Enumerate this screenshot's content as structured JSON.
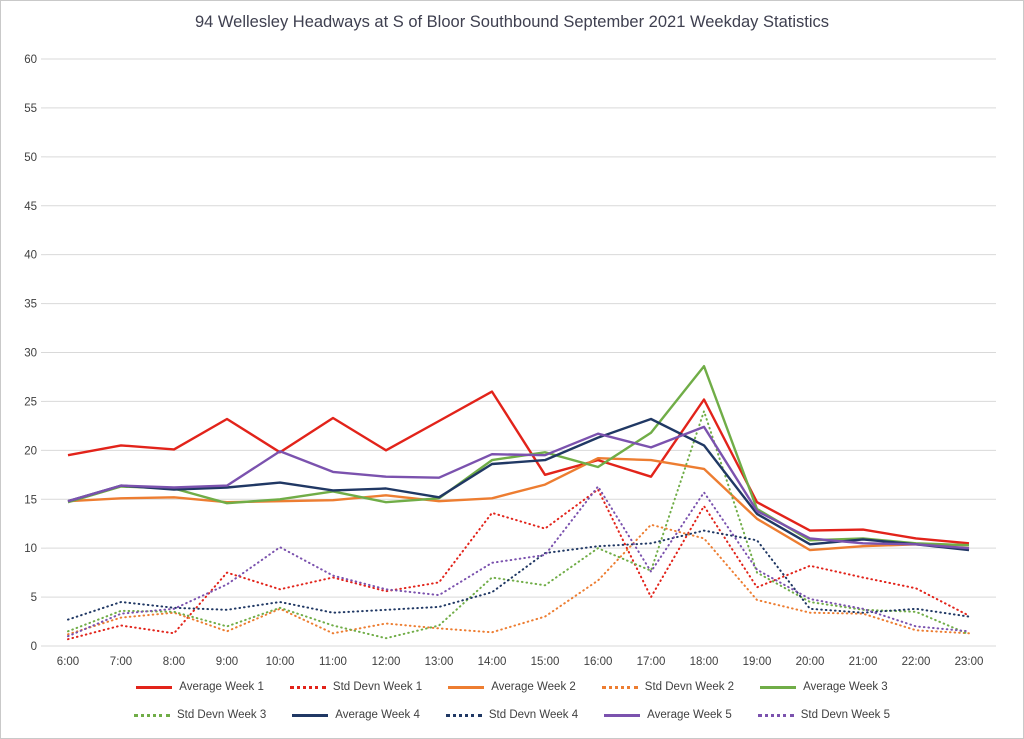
{
  "chart_data": {
    "type": "line",
    "title": "94 Wellesley Headways at S of Bloor Southbound September 2021 Weekday Statistics",
    "xlabel": "",
    "ylabel": "",
    "ylim": [
      0,
      60
    ],
    "ytick": 5,
    "grid": "on",
    "legend_position": "bottom",
    "grid_color": "#d9d9d9",
    "axis_label_color": "#404040",
    "categories": [
      "6:00",
      "7:00",
      "8:00",
      "9:00",
      "10:00",
      "11:00",
      "12:00",
      "13:00",
      "14:00",
      "15:00",
      "16:00",
      "17:00",
      "18:00",
      "19:00",
      "20:00",
      "21:00",
      "22:00",
      "23:00"
    ],
    "series": [
      {
        "name": "Average Week 1",
        "color": "#e2231a",
        "dash": "solid",
        "values": [
          19.5,
          20.5,
          20.1,
          23.2,
          19.8,
          23.3,
          20.0,
          23.0,
          26.0,
          17.5,
          19.0,
          17.3,
          25.2,
          14.7,
          11.8,
          11.9,
          11.0,
          10.5
        ]
      },
      {
        "name": "Std Devn Week 1",
        "color": "#e2231a",
        "dash": "dotted",
        "values": [
          0.7,
          2.1,
          1.3,
          7.5,
          5.8,
          7.0,
          5.6,
          6.5,
          13.6,
          12.0,
          16.0,
          5.0,
          14.3,
          6.0,
          8.2,
          7.0,
          5.9,
          3.1
        ]
      },
      {
        "name": "Average Week 2",
        "color": "#ed7d31",
        "dash": "solid",
        "values": [
          14.8,
          15.1,
          15.2,
          14.7,
          14.8,
          14.9,
          15.4,
          14.8,
          15.1,
          16.5,
          19.2,
          19.0,
          18.1,
          13.0,
          9.8,
          10.2,
          10.4,
          10.3
        ]
      },
      {
        "name": "Std Devn Week 2",
        "color": "#ed7d31",
        "dash": "dotted",
        "values": [
          1.2,
          2.9,
          3.4,
          1.5,
          3.8,
          1.3,
          2.3,
          1.8,
          1.4,
          3.0,
          6.7,
          12.4,
          11.0,
          4.7,
          3.4,
          3.3,
          1.6,
          1.3
        ]
      },
      {
        "name": "Average Week 3",
        "color": "#70ad47",
        "dash": "solid",
        "values": [
          14.7,
          16.3,
          16.1,
          14.6,
          15.0,
          15.8,
          14.7,
          15.1,
          19.0,
          19.8,
          18.3,
          21.8,
          28.6,
          14.0,
          10.8,
          11.0,
          10.5,
          10.3
        ]
      },
      {
        "name": "Std Devn Week 3",
        "color": "#70ad47",
        "dash": "dotted",
        "values": [
          1.5,
          3.6,
          3.5,
          2.0,
          3.9,
          2.1,
          0.8,
          2.1,
          7.0,
          6.2,
          10.0,
          7.7,
          24.0,
          7.5,
          4.5,
          3.7,
          3.5,
          1.2
        ]
      },
      {
        "name": "Average Week 4",
        "color": "#203864",
        "dash": "solid",
        "values": [
          14.8,
          16.4,
          16.0,
          16.2,
          16.7,
          15.9,
          16.1,
          15.2,
          18.6,
          19.0,
          21.3,
          23.2,
          20.5,
          13.5,
          10.4,
          10.9,
          10.4,
          9.8
        ]
      },
      {
        "name": "Std Devn Week 4",
        "color": "#203864",
        "dash": "dotted",
        "values": [
          2.7,
          4.5,
          3.9,
          3.7,
          4.5,
          3.4,
          3.7,
          4.0,
          5.5,
          9.5,
          10.2,
          10.5,
          11.8,
          10.8,
          3.8,
          3.4,
          3.8,
          3.0
        ]
      },
      {
        "name": "Average Week 5",
        "color": "#7b52ae",
        "dash": "solid",
        "values": [
          14.8,
          16.4,
          16.2,
          16.4,
          19.9,
          17.8,
          17.3,
          17.2,
          19.6,
          19.5,
          21.7,
          20.3,
          22.4,
          13.8,
          11.0,
          10.5,
          10.4,
          10.0
        ]
      },
      {
        "name": "Std Devn Week 5",
        "color": "#7b52ae",
        "dash": "dotted",
        "values": [
          1.0,
          3.3,
          3.8,
          6.3,
          10.1,
          7.2,
          5.8,
          5.2,
          8.5,
          9.3,
          16.3,
          7.6,
          15.7,
          7.8,
          4.8,
          3.8,
          2.0,
          1.5
        ]
      }
    ]
  }
}
